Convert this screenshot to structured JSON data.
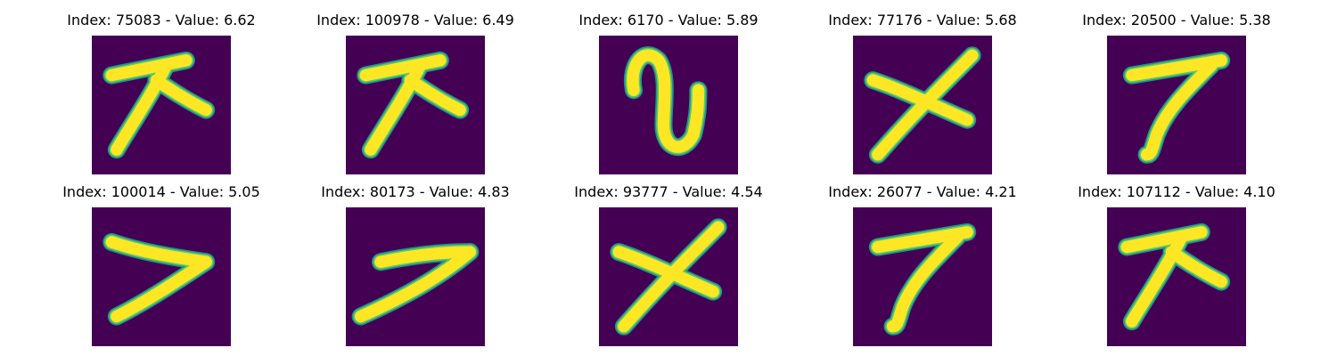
{
  "colors": {
    "background": "#440154",
    "edge": "#21918c",
    "mid": "#5ec962",
    "stroke": "#fde725"
  },
  "tiles": [
    {
      "title": "Index: 75083 - Value: 6.62",
      "glyph": "pen-stroke-cross-forward"
    },
    {
      "title": "Index: 100978 - Value: 6.49",
      "glyph": "pen-stroke-cross-forward"
    },
    {
      "title": "Index: 6170 - Value: 5.89",
      "glyph": "pen-stroke-loop"
    },
    {
      "title": "Index: 77176 - Value: 5.68",
      "glyph": "pen-stroke-cross-x"
    },
    {
      "title": "Index: 20500 - Value: 5.38",
      "glyph": "pen-stroke-seven"
    },
    {
      "title": "Index: 100014 - Value: 5.05",
      "glyph": "pen-stroke-seven-wide"
    },
    {
      "title": "Index: 80173 - Value: 4.83",
      "glyph": "pen-stroke-seven-thin"
    },
    {
      "title": "Index: 93777 - Value: 4.54",
      "glyph": "pen-stroke-cross-x"
    },
    {
      "title": "Index: 26077 - Value: 4.21",
      "glyph": "pen-stroke-seven"
    },
    {
      "title": "Index: 107112 - Value: 4.10",
      "glyph": "pen-stroke-cross-forward"
    }
  ]
}
